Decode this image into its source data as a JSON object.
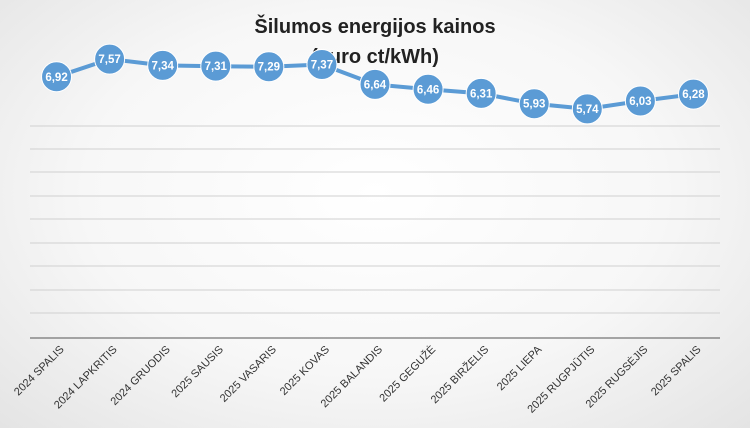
{
  "chart_data": {
    "type": "line",
    "title_line1": "Šilumos energijos kainos",
    "title_line2": "(euro ct/kWh)",
    "categories": [
      "2024 SPALIS",
      "2024 LAPKRITIS",
      "2024 GRUODIS",
      "2025 SAUSIS",
      "2025 VASARIS",
      "2025 KOVAS",
      "2025 BALANDIS",
      "2025 GEGUŽĖ",
      "2025 BIRŽELIS",
      "2025 LIEPA",
      "2025 RUGPJŪTIS",
      "2025 RUGSĖJIS",
      "2025 SPALIS"
    ],
    "values": [
      6.92,
      7.57,
      7.34,
      7.31,
      7.29,
      7.37,
      6.64,
      6.46,
      6.31,
      5.93,
      5.74,
      6.03,
      6.28
    ],
    "value_labels": [
      "6,92",
      "7,57",
      "7,34",
      "7,31",
      "7,29",
      "7,37",
      "6,64",
      "6,46",
      "6,31",
      "5,93",
      "5,74",
      "6,03",
      "6,28"
    ],
    "grid": true,
    "legend": false,
    "colors": {
      "line": "#5b9bd5",
      "marker": "#5b9bd5",
      "grid": "#d0d0d0",
      "axis": "#555555"
    }
  }
}
